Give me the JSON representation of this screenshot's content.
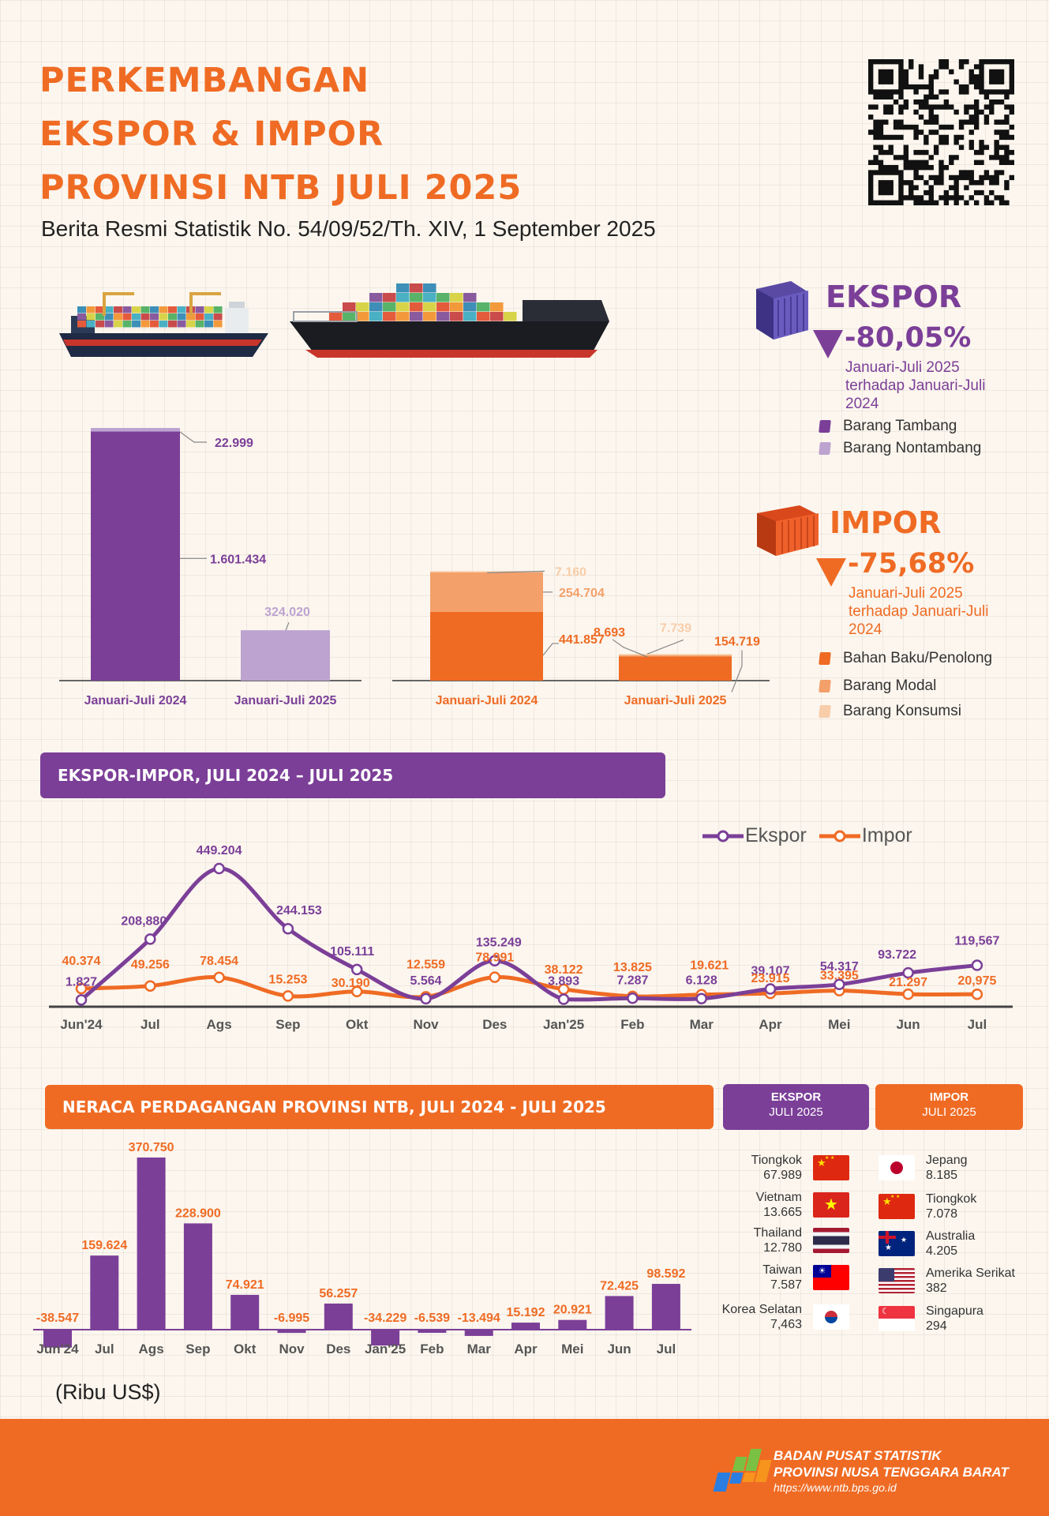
{
  "header": {
    "title_lines": [
      "PERKEMBANGAN",
      "EKSPOR & IMPOR",
      "PROVINSI NTB JULI 2025"
    ],
    "subtitle": "Berita Resmi Statistik No. 54/09/52/Th. XIV, 1 September 2025"
  },
  "ekspor_summary": {
    "label": "EKSPOR",
    "change": "-80,05%",
    "note": "Januari-Juli 2025 terhadap Januari-Juli 2024",
    "legend": [
      "Barang Tambang",
      "Barang Nontambang"
    ],
    "colors": [
      "#7b3f98",
      "#bda3d0"
    ]
  },
  "impor_summary": {
    "label": "IMPOR",
    "change": "-75,68%",
    "note": "Januari-Juli 2025 terhadap Januari-Juli 2024",
    "legend": [
      "Bahan Baku/Penolong",
      "Barang Modal",
      "Barang Konsumsi"
    ],
    "colors": [
      "#ef6b24",
      "#f4a06a",
      "#f8cda9"
    ]
  },
  "line_section": {
    "banner": "EKSPOR-IMPOR, JULI 2024 – JULI 2025"
  },
  "neraca_section": {
    "banner": "NERACA PERDAGANGAN PROVINSI NTB, JULI 2024 - JULI 2025",
    "unit": "(Ribu US$)"
  },
  "partners": {
    "ekspor_header": [
      "EKSPOR",
      "JULI 2025"
    ],
    "impor_header": [
      "IMPOR",
      "JULI 2025"
    ],
    "ekspor": [
      {
        "country": "Tiongkok",
        "value": "67.989",
        "flag": "china-flag-icon"
      },
      {
        "country": "Vietnam",
        "value": "13.665",
        "flag": "vietnam-flag-icon"
      },
      {
        "country": "Thailand",
        "value": "12.780",
        "flag": "thailand-flag-icon"
      },
      {
        "country": "Taiwan",
        "value": "7.587",
        "flag": "taiwan-flag-icon"
      },
      {
        "country": "Korea Selatan",
        "value": "7,463",
        "flag": "south-korea-flag-icon"
      }
    ],
    "impor": [
      {
        "country": "Jepang",
        "value": "8.185",
        "flag": "japan-flag-icon"
      },
      {
        "country": "Tiongkok",
        "value": "7.078",
        "flag": "china-flag-icon"
      },
      {
        "country": "Australia",
        "value": "4.205",
        "flag": "australia-flag-icon"
      },
      {
        "country": "Amerika Serikat",
        "value": "382",
        "flag": "usa-flag-icon"
      },
      {
        "country": "Singapura",
        "value": "294",
        "flag": "singapore-flag-icon"
      }
    ]
  },
  "footer": {
    "org_line1": "BADAN PUSAT STATISTIK",
    "org_line2": "PROVINSI NUSA TENGGARA BARAT",
    "url": "https://www.ntb.bps.go.id"
  },
  "chart_data": [
    {
      "type": "bar",
      "stacked": true,
      "title": "",
      "categories": [
        "Januari-Juli 2024",
        "Januari-Juli 2025"
      ],
      "series": [
        {
          "name": "Barang Tambang",
          "values": [
            1601434,
            0
          ],
          "labels": [
            "1.601.434",
            ""
          ]
        },
        {
          "name": "Barang Nontambang",
          "values": [
            22999,
            324020
          ],
          "labels": [
            "22.999",
            "324.020"
          ]
        }
      ]
    },
    {
      "type": "bar",
      "stacked": true,
      "title": "",
      "categories": [
        "Januari-Juli 2024",
        "Januari-Juli 2025"
      ],
      "series": [
        {
          "name": "Bahan Baku/Penolong",
          "values": [
            441857,
            154719
          ],
          "labels": [
            "441.857",
            "154.719"
          ]
        },
        {
          "name": "Barang Modal",
          "values": [
            254704,
            8693
          ],
          "labels": [
            "254.704",
            "8.693"
          ]
        },
        {
          "name": "Barang Konsumsi",
          "values": [
            7160,
            7739
          ],
          "labels": [
            "7.160",
            "7.739"
          ]
        }
      ]
    },
    {
      "type": "line",
      "categories": [
        "Jun'24",
        "Jul",
        "Ags",
        "Sep",
        "Okt",
        "Nov",
        "Des",
        "Jan'25",
        "Feb",
        "Mar",
        "Apr",
        "Mei",
        "Jun",
        "Jul"
      ],
      "series": [
        {
          "name": "Ekspor",
          "color": "#7b3f98",
          "values": [
            1827,
            208880,
            449204,
            244153,
            105111,
            5564,
            135249,
            3893,
            7287,
            6128,
            39107,
            54317,
            93722,
            119567
          ],
          "labels": [
            "1.827",
            "208,880",
            "449.204",
            "244.153",
            "105.111",
            "5.564",
            "135.249",
            "3.893",
            "7.287",
            "6.128",
            "39.107",
            "54.317",
            "93.722",
            "119,567"
          ]
        },
        {
          "name": "Impor",
          "color": "#ef6b24",
          "values": [
            40374,
            49256,
            78454,
            15253,
            30190,
            12559,
            78991,
            38122,
            13825,
            19621,
            23915,
            33395,
            21297,
            20975
          ],
          "labels": [
            "40.374",
            "49.256",
            "78.454",
            "15.253",
            "30.190",
            "12.559",
            "78.991",
            "38.122",
            "13.825",
            "19.621",
            "23.915",
            "33.395",
            "21.297",
            "20,975"
          ]
        }
      ]
    },
    {
      "type": "bar",
      "categories": [
        "Jun'24",
        "Jul",
        "Ags",
        "Sep",
        "Okt",
        "Nov",
        "Des",
        "Jan'25",
        "Feb",
        "Mar",
        "Apr",
        "Mei",
        "Jun",
        "Jul"
      ],
      "values": [
        -38547,
        159624,
        370750,
        228900,
        74921,
        -6995,
        56257,
        -34229,
        -6539,
        -13494,
        15192,
        20921,
        72425,
        98592
      ],
      "labels": [
        "-38.547",
        "159.624",
        "370.750",
        "228.900",
        "74.921",
        "-6.995",
        "56.257",
        "-34.229",
        "-6.539",
        "-13.494",
        "15.192",
        "20.921",
        "72.425",
        "98.592"
      ]
    }
  ]
}
